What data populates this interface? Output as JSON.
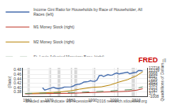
{
  "chart_data": {
    "type": "line",
    "series": [
      {
        "name": "Income Gini Ratio for Households by Race of Householder, All\nRaces (left)",
        "color": "#4c72b0",
        "line_style": "solid",
        "axis": "y",
        "x": [
          1967,
          1968,
          1969,
          1970,
          1971,
          1972,
          1973,
          1974,
          1975,
          1976,
          1977,
          1978,
          1979,
          1980,
          1981,
          1982,
          1983,
          1984,
          1985,
          1986,
          1987,
          1988,
          1989,
          1990,
          1991,
          1992,
          1993,
          1994,
          1995,
          1996,
          1997,
          1998,
          1999,
          2000,
          2001,
          2002,
          2003,
          2004,
          2005,
          2006,
          2007,
          2008,
          2009,
          2010,
          2011,
          2012,
          2013
        ],
        "values": [
          0.399,
          0.388,
          0.391,
          0.394,
          0.396,
          0.401,
          0.397,
          0.395,
          0.397,
          0.398,
          0.402,
          0.402,
          0.404,
          0.403,
          0.406,
          0.412,
          0.414,
          0.415,
          0.419,
          0.425,
          0.426,
          0.427,
          0.431,
          0.428,
          0.428,
          0.434,
          0.454,
          0.456,
          0.45,
          0.455,
          0.459,
          0.456,
          0.457,
          0.462,
          0.466,
          0.462,
          0.464,
          0.466,
          0.469,
          0.47,
          0.463,
          0.466,
          0.468,
          0.469,
          0.477,
          0.477,
          0.476
        ]
      },
      {
        "name": "M1 Money Stock (right)",
        "color": "#c0392b",
        "line_style": "solid",
        "axis": "y2",
        "x": [
          1959,
          1963,
          1967,
          1970,
          1975,
          1980,
          1984,
          1988,
          1990,
          1994,
          1998,
          2002,
          2006,
          2010,
          2013
        ],
        "values": [
          140,
          155,
          168,
          214,
          290,
          410,
          560,
          790,
          830,
          1110,
          1100,
          1220,
          1380,
          1860,
          2600
        ]
      },
      {
        "name": "M2 Money Stock (right)",
        "color": "#b8860b",
        "line_style": "solid",
        "axis": "y2",
        "x": [
          1959,
          1963,
          1967,
          1970,
          1975,
          1980,
          1984,
          1988,
          1990,
          1994,
          1998,
          2002,
          2006,
          2010,
          2013
        ],
        "values": [
          300,
          400,
          550,
          720,
          1050,
          1640,
          2400,
          3060,
          3300,
          3520,
          4400,
          5800,
          7000,
          8800,
          10800
        ]
      },
      {
        "name": "St. Louis Adjusted Monetary Base (right)",
        "color": "#5d8a5e",
        "line_style": "dashed",
        "axis": "y2",
        "x": [
          1959,
          1963,
          1967,
          1970,
          1975,
          1980,
          1984,
          1988,
          1990,
          1994,
          1998,
          2002,
          2006,
          2008,
          2010,
          2013
        ],
        "values": [
          290,
          340,
          400,
          470,
          580,
          750,
          900,
          1060,
          1170,
          1280,
          1500,
          1900,
          2200,
          2200,
          2700,
          3500
        ]
      }
    ],
    "xlim": [
      1958,
      2015
    ],
    "xticks": [
      1960,
      1970,
      1980,
      1990,
      2000,
      2010
    ],
    "ylim": [
      0.36,
      0.49
    ],
    "yticks": [
      0.38,
      {
        "value": 0.4,
        "label": "0.40"
      },
      0.42,
      0.44,
      0.46,
      0.48
    ],
    "y2lim": [
      -1008,
      12718
    ],
    "y2ticks": [
      -1008,
      371,
      1742,
      3113,
      4484,
      5855,
      7226,
      8597,
      9968,
      11339,
      12718
    ],
    "y_label": "(Ratio)",
    "y2_label": "Quadrillions of Dollars",
    "grid": true,
    "legend": "top",
    "shaded_bands": {
      "color": "#b0b0b0",
      "ranges": [
        [
          1960.3,
          1961.1
        ],
        [
          1969.9,
          1970.9
        ],
        [
          1973.9,
          1975.2
        ],
        [
          1980.0,
          1980.6
        ],
        [
          1981.6,
          1982.9
        ],
        [
          1990.6,
          1991.2
        ],
        [
          2001.2,
          2001.9
        ],
        [
          2007.9,
          2009.4
        ]
      ]
    },
    "annotations": [
      {
        "text": "FRED",
        "color": "#cc0000"
      },
      {
        "text": "ıll",
        "color": "#888888"
      },
      {
        "text": "Shaded areas indicate US recessions  ·  2016 research.stlouisfed.org",
        "color": "#555555"
      }
    ]
  }
}
